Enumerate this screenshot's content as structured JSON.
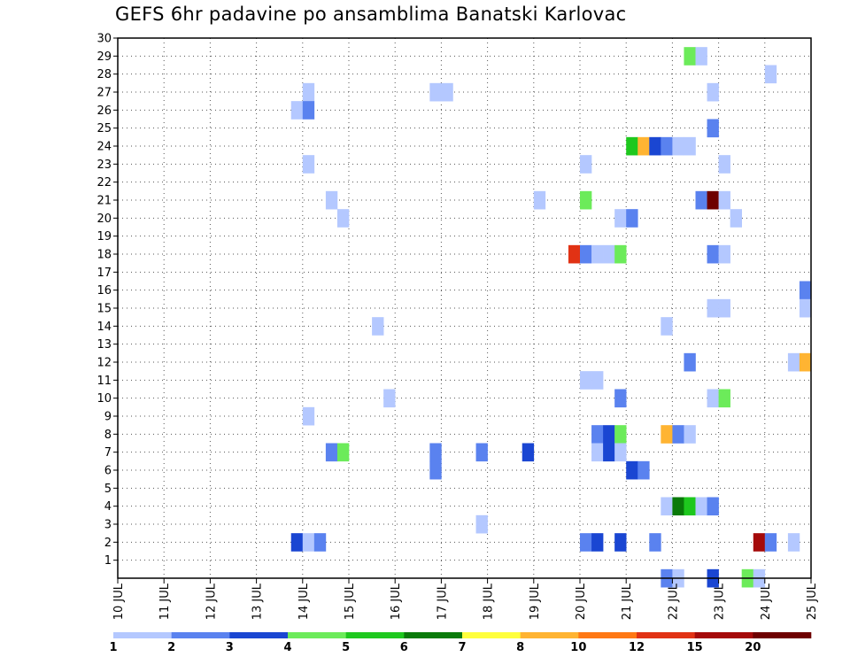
{
  "chart_data": {
    "type": "heatmap",
    "title": "GEFS 6hr padavine po ansamblima Banatski Karlovac",
    "xlabel": "",
    "ylabel": "",
    "x_ticks": [
      "10 JUL",
      "11 JUL",
      "12 JUL",
      "13 JUL",
      "14 JUL",
      "15 JUL",
      "16 JUL",
      "17 JUL",
      "18 JUL",
      "19 JUL",
      "20 JUL",
      "21 JUL",
      "22 JUL",
      "23 JUL",
      "24 JUL",
      "25 JUL"
    ],
    "xlim": [
      0,
      15
    ],
    "ylim": [
      0,
      30
    ],
    "y_ticks": [
      1,
      2,
      3,
      4,
      5,
      6,
      7,
      8,
      9,
      10,
      11,
      12,
      13,
      14,
      15,
      16,
      17,
      18,
      19,
      20,
      21,
      22,
      23,
      24,
      25,
      26,
      27,
      28,
      29,
      30
    ],
    "grid": true,
    "cell_width_days": 0.25,
    "colorbar": {
      "labels": [
        "1",
        "2",
        "3",
        "4",
        "5",
        "6",
        "7",
        "8",
        "10",
        "12",
        "15",
        "20"
      ],
      "colors": [
        "#b4c8ff",
        "#5a82ef",
        "#1a46d2",
        "#6ceb5a",
        "#1ec81e",
        "#0a7a0a",
        "#ffff3c",
        "#ffb432",
        "#ff7814",
        "#e13214",
        "#a50a0a",
        "#6e0000"
      ]
    },
    "cells": [
      {
        "x": 12.25,
        "y": 29,
        "c": 4
      },
      {
        "x": 12.5,
        "y": 29,
        "c": 1
      },
      {
        "x": 14.0,
        "y": 28,
        "c": 1
      },
      {
        "x": 4.0,
        "y": 27,
        "c": 1
      },
      {
        "x": 6.75,
        "y": 27,
        "c": 1
      },
      {
        "x": 7.0,
        "y": 27,
        "c": 1
      },
      {
        "x": 12.75,
        "y": 27,
        "c": 1
      },
      {
        "x": 3.75,
        "y": 26,
        "c": 1
      },
      {
        "x": 4.0,
        "y": 26,
        "c": 2
      },
      {
        "x": 12.75,
        "y": 25,
        "c": 2
      },
      {
        "x": 11.0,
        "y": 24,
        "c": 5
      },
      {
        "x": 11.25,
        "y": 24,
        "c": 8
      },
      {
        "x": 11.5,
        "y": 24,
        "c": 3
      },
      {
        "x": 11.75,
        "y": 24,
        "c": 2
      },
      {
        "x": 12.0,
        "y": 24,
        "c": 1
      },
      {
        "x": 12.25,
        "y": 24,
        "c": 1
      },
      {
        "x": 4.0,
        "y": 23,
        "c": 1
      },
      {
        "x": 10.0,
        "y": 23,
        "c": 1
      },
      {
        "x": 13.0,
        "y": 23,
        "c": 1
      },
      {
        "x": 4.5,
        "y": 21,
        "c": 1
      },
      {
        "x": 9.0,
        "y": 21,
        "c": 1
      },
      {
        "x": 10.0,
        "y": 21,
        "c": 4
      },
      {
        "x": 12.5,
        "y": 21,
        "c": 2
      },
      {
        "x": 12.75,
        "y": 21,
        "c": 12
      },
      {
        "x": 13.0,
        "y": 21,
        "c": 1
      },
      {
        "x": 4.75,
        "y": 20,
        "c": 1
      },
      {
        "x": 10.75,
        "y": 20,
        "c": 1
      },
      {
        "x": 11.0,
        "y": 20,
        "c": 2
      },
      {
        "x": 13.25,
        "y": 20,
        "c": 1
      },
      {
        "x": 9.75,
        "y": 18,
        "c": 10
      },
      {
        "x": 10.0,
        "y": 18,
        "c": 2
      },
      {
        "x": 10.25,
        "y": 18,
        "c": 1
      },
      {
        "x": 10.5,
        "y": 18,
        "c": 1
      },
      {
        "x": 10.75,
        "y": 18,
        "c": 4
      },
      {
        "x": 12.75,
        "y": 18,
        "c": 2
      },
      {
        "x": 13.0,
        "y": 18,
        "c": 1
      },
      {
        "x": 14.75,
        "y": 16,
        "c": 2
      },
      {
        "x": 12.75,
        "y": 15,
        "c": 1
      },
      {
        "x": 13.0,
        "y": 15,
        "c": 1
      },
      {
        "x": 14.75,
        "y": 15,
        "c": 1
      },
      {
        "x": 5.5,
        "y": 14,
        "c": 1
      },
      {
        "x": 11.75,
        "y": 14,
        "c": 1
      },
      {
        "x": 12.25,
        "y": 12,
        "c": 2
      },
      {
        "x": 14.5,
        "y": 12,
        "c": 1
      },
      {
        "x": 14.75,
        "y": 12,
        "c": 8
      },
      {
        "x": 10.0,
        "y": 11,
        "c": 1
      },
      {
        "x": 10.25,
        "y": 11,
        "c": 1
      },
      {
        "x": 5.75,
        "y": 10,
        "c": 1
      },
      {
        "x": 10.75,
        "y": 10,
        "c": 2
      },
      {
        "x": 12.75,
        "y": 10,
        "c": 1
      },
      {
        "x": 13.0,
        "y": 10,
        "c": 4
      },
      {
        "x": 4.0,
        "y": 9,
        "c": 1
      },
      {
        "x": 10.25,
        "y": 8,
        "c": 2
      },
      {
        "x": 10.5,
        "y": 8,
        "c": 3
      },
      {
        "x": 10.75,
        "y": 8,
        "c": 4
      },
      {
        "x": 11.75,
        "y": 8,
        "c": 8
      },
      {
        "x": 12.0,
        "y": 8,
        "c": 2
      },
      {
        "x": 12.25,
        "y": 8,
        "c": 1
      },
      {
        "x": 4.5,
        "y": 7,
        "c": 2
      },
      {
        "x": 4.75,
        "y": 7,
        "c": 4
      },
      {
        "x": 6.75,
        "y": 7,
        "c": 2
      },
      {
        "x": 7.75,
        "y": 7,
        "c": 2
      },
      {
        "x": 8.75,
        "y": 7,
        "c": 3
      },
      {
        "x": 10.25,
        "y": 7,
        "c": 1
      },
      {
        "x": 10.5,
        "y": 7,
        "c": 3
      },
      {
        "x": 10.75,
        "y": 7,
        "c": 1
      },
      {
        "x": 6.75,
        "y": 6,
        "c": 2
      },
      {
        "x": 11.0,
        "y": 6,
        "c": 3
      },
      {
        "x": 11.25,
        "y": 6,
        "c": 2
      },
      {
        "x": 11.75,
        "y": 4,
        "c": 1
      },
      {
        "x": 12.0,
        "y": 4,
        "c": 6
      },
      {
        "x": 12.25,
        "y": 4,
        "c": 5
      },
      {
        "x": 12.5,
        "y": 4,
        "c": 1
      },
      {
        "x": 12.75,
        "y": 4,
        "c": 2
      },
      {
        "x": 7.75,
        "y": 3,
        "c": 1
      },
      {
        "x": 3.75,
        "y": 2,
        "c": 3
      },
      {
        "x": 4.0,
        "y": 2,
        "c": 1
      },
      {
        "x": 4.25,
        "y": 2,
        "c": 2
      },
      {
        "x": 10.0,
        "y": 2,
        "c": 2
      },
      {
        "x": 10.25,
        "y": 2,
        "c": 3
      },
      {
        "x": 10.75,
        "y": 2,
        "c": 3
      },
      {
        "x": 11.5,
        "y": 2,
        "c": 2
      },
      {
        "x": 13.75,
        "y": 2,
        "c": 11
      },
      {
        "x": 14.0,
        "y": 2,
        "c": 2
      },
      {
        "x": 14.5,
        "y": 2,
        "c": 1
      },
      {
        "x": 11.75,
        "y": 0,
        "c": 2
      },
      {
        "x": 12.0,
        "y": 0,
        "c": 1
      },
      {
        "x": 12.75,
        "y": 0,
        "c": 3
      },
      {
        "x": 13.5,
        "y": 0,
        "c": 4
      },
      {
        "x": 13.75,
        "y": 0,
        "c": 1
      }
    ]
  }
}
